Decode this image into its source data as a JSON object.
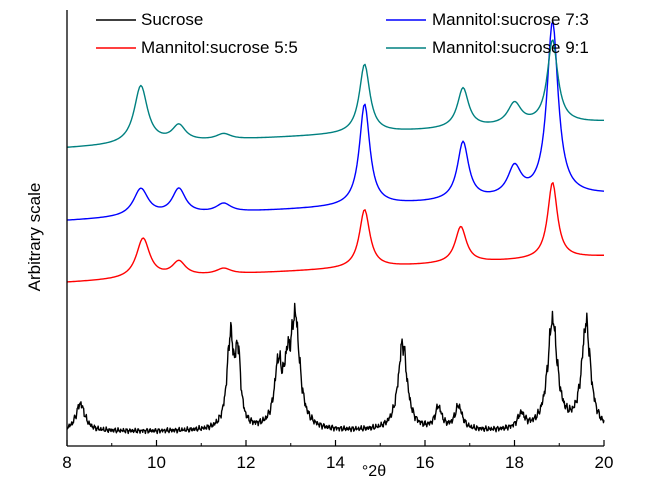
{
  "chart_data": {
    "type": "line",
    "xlabel": "°2θ",
    "xlabel_prefix": "°",
    "xlabel_symbol": "2θ",
    "ylabel": "Arbitrary scale",
    "xlim": [
      8,
      20
    ],
    "xticks": [
      "8",
      "10",
      "12",
      "14",
      "16",
      "18",
      "20"
    ],
    "y_ticks_labeled": false,
    "grid": false,
    "legend_position": "top",
    "series": [
      {
        "name": "Sucrose",
        "color": "#000000",
        "baseline": 0.2,
        "noise": true,
        "peaks": [
          {
            "x": 8.3,
            "h": 0.38,
            "w": 0.12
          },
          {
            "x": 11.65,
            "h": 1.22,
            "w": 0.09
          },
          {
            "x": 11.82,
            "h": 0.95,
            "w": 0.07
          },
          {
            "x": 12.72,
            "h": 0.8,
            "w": 0.1
          },
          {
            "x": 12.92,
            "h": 0.55,
            "w": 0.08
          },
          {
            "x": 13.1,
            "h": 1.48,
            "w": 0.12
          },
          {
            "x": 15.5,
            "h": 1.2,
            "w": 0.12
          },
          {
            "x": 16.3,
            "h": 0.3,
            "w": 0.09
          },
          {
            "x": 16.75,
            "h": 0.32,
            "w": 0.1
          },
          {
            "x": 18.15,
            "h": 0.2,
            "w": 0.1
          },
          {
            "x": 18.85,
            "h": 1.5,
            "w": 0.13
          },
          {
            "x": 19.6,
            "h": 1.45,
            "w": 0.12
          }
        ]
      },
      {
        "name": "Mannitol:sucrose 5:5",
        "color": "#ff0000",
        "baseline": 2.25,
        "slope": 0.03,
        "noise": false,
        "peaks": [
          {
            "x": 9.7,
            "h": 0.55,
            "w": 0.18
          },
          {
            "x": 10.5,
            "h": 0.2,
            "w": 0.18
          },
          {
            "x": 11.5,
            "h": 0.08,
            "w": 0.2
          },
          {
            "x": 14.65,
            "h": 0.8,
            "w": 0.14
          },
          {
            "x": 16.8,
            "h": 0.5,
            "w": 0.15
          },
          {
            "x": 18.85,
            "h": 1.05,
            "w": 0.13
          }
        ]
      },
      {
        "name": "Mannitol:sucrose 7:3",
        "color": "#0000ff",
        "baseline": 3.1,
        "slope": 0.03,
        "noise": false,
        "peaks": [
          {
            "x": 9.65,
            "h": 0.38,
            "w": 0.2
          },
          {
            "x": 10.5,
            "h": 0.35,
            "w": 0.18
          },
          {
            "x": 11.5,
            "h": 0.12,
            "w": 0.2
          },
          {
            "x": 14.65,
            "h": 1.4,
            "w": 0.14
          },
          {
            "x": 16.85,
            "h": 0.8,
            "w": 0.15
          },
          {
            "x": 18.0,
            "h": 0.4,
            "w": 0.18
          },
          {
            "x": 18.85,
            "h": 2.4,
            "w": 0.15
          }
        ]
      },
      {
        "name": "Mannitol:sucrose 9:1",
        "color": "#008080",
        "baseline": 4.1,
        "slope": 0.03,
        "noise": false,
        "peaks": [
          {
            "x": 9.65,
            "h": 0.8,
            "w": 0.18
          },
          {
            "x": 10.5,
            "h": 0.22,
            "w": 0.18
          },
          {
            "x": 11.5,
            "h": 0.08,
            "w": 0.2
          },
          {
            "x": 14.65,
            "h": 0.95,
            "w": 0.14
          },
          {
            "x": 16.85,
            "h": 0.55,
            "w": 0.15
          },
          {
            "x": 18.0,
            "h": 0.3,
            "w": 0.18
          },
          {
            "x": 18.85,
            "h": 1.15,
            "w": 0.14
          }
        ]
      }
    ],
    "legend": {
      "left_column": [
        "Sucrose",
        "Mannitol:sucrose 5:5"
      ],
      "right_column": [
        "Mannitol:sucrose 7:3",
        "Mannitol:sucrose 9:1"
      ]
    }
  }
}
